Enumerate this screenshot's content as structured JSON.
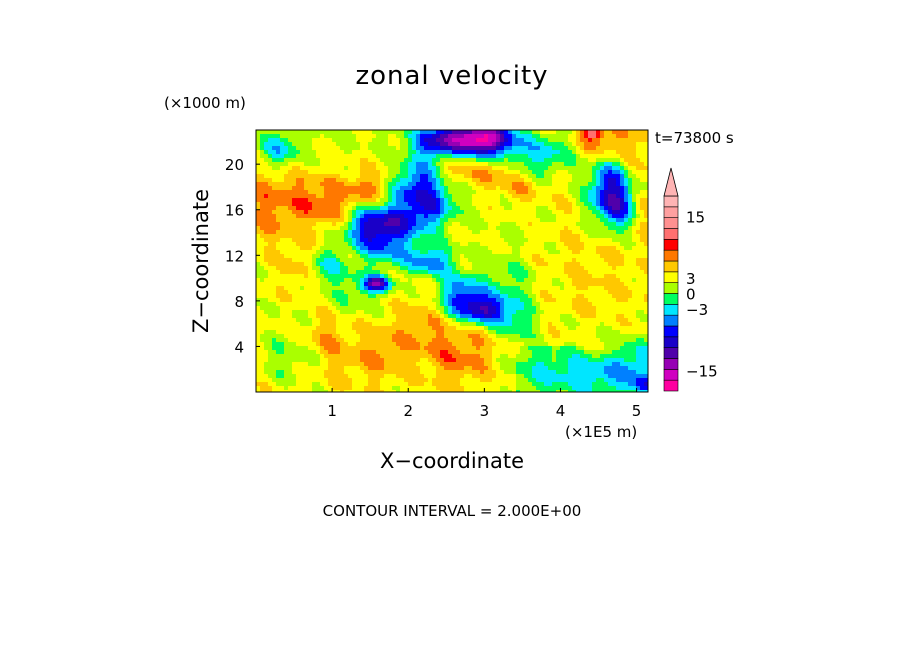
{
  "chart_data": {
    "type": "heatmap",
    "title": "zonal velocity",
    "xlabel": "X−coordinate",
    "ylabel": "Z−coordinate",
    "x_unit": "(×1E5 m)",
    "y_unit": "(×1000 m)",
    "xlim": [
      0,
      5.15
    ],
    "ylim": [
      0,
      23.0
    ],
    "x_ticks": [
      {
        "value": 1,
        "label": "1"
      },
      {
        "value": 2,
        "label": "2"
      },
      {
        "value": 3,
        "label": "3"
      },
      {
        "value": 4,
        "label": "4"
      },
      {
        "value": 5,
        "label": "5"
      }
    ],
    "y_ticks": [
      {
        "value": 4,
        "label": "4"
      },
      {
        "value": 8,
        "label": "8"
      },
      {
        "value": 12,
        "label": "12"
      },
      {
        "value": 16,
        "label": "16"
      },
      {
        "value": 20,
        "label": "20"
      }
    ],
    "time_label": "t=73800 s",
    "contour_interval_label": "CONTOUR INTERVAL = 2.000E+00",
    "colorbar": {
      "levels": [
        -19,
        -17,
        -15,
        -13,
        -11,
        -9,
        -7,
        -5,
        -3,
        -1,
        1,
        3,
        5,
        7,
        9,
        11,
        13,
        15,
        17,
        19
      ],
      "colors": [
        "#ff00a0",
        "#d000c0",
        "#9600b4",
        "#5000aa",
        "#1a00c8",
        "#0000ff",
        "#0080ff",
        "#00e6ff",
        "#00ff60",
        "#aaff00",
        "#ffff00",
        "#ffc800",
        "#ff7800",
        "#ff0000",
        "#ff7070",
        "#ff9090",
        "#ffa0a0",
        "#ffb4b4"
      ],
      "tick_labels": [
        {
          "value": 15,
          "label": "15"
        },
        {
          "value": 3,
          "label": "3"
        },
        {
          "value": 0,
          "label": "0"
        },
        {
          "value": -3,
          "label": "−3"
        },
        {
          "value": -15,
          "label": "−15"
        }
      ]
    },
    "features": [
      {
        "x": 0.9,
        "z": 20.0,
        "value": 1,
        "w": 0.5,
        "h": 2.5
      },
      {
        "x": 0.3,
        "z": 21.2,
        "value": -6,
        "w": 0.25,
        "h": 1.6
      },
      {
        "x": 0.15,
        "z": 16.5,
        "value": 6,
        "w": 0.35,
        "h": 4.0
      },
      {
        "x": 0.7,
        "z": 17.0,
        "value": 6,
        "w": 0.35,
        "h": 2.5
      },
      {
        "x": 1.35,
        "z": 20.0,
        "value": 1,
        "w": 0.5,
        "h": 2.2
      },
      {
        "x": 1.05,
        "z": 16.0,
        "value": 5,
        "w": 0.3,
        "h": 2.0
      },
      {
        "x": 1.5,
        "z": 17.8,
        "value": 7,
        "w": 0.35,
        "h": 1.6
      },
      {
        "x": 1.8,
        "z": 19.0,
        "value": 3,
        "w": 0.4,
        "h": 2.0
      },
      {
        "x": 2.3,
        "z": 20.5,
        "value": -3,
        "w": 0.3,
        "h": 1.8
      },
      {
        "x": 2.4,
        "z": 22.0,
        "value": -8,
        "w": 0.35,
        "h": 1.3
      },
      {
        "x": 2.9,
        "z": 22.4,
        "value": -13,
        "w": 0.45,
        "h": 1.2
      },
      {
        "x": 3.0,
        "z": 21.5,
        "value": -10,
        "w": 0.35,
        "h": 1.5
      },
      {
        "x": 2.6,
        "z": 19.5,
        "value": 7,
        "w": 0.35,
        "h": 1.8
      },
      {
        "x": 3.15,
        "z": 19.8,
        "value": 6,
        "w": 0.3,
        "h": 2.0
      },
      {
        "x": 2.1,
        "z": 18.0,
        "value": -10,
        "w": 0.45,
        "h": 2.0
      },
      {
        "x": 1.5,
        "z": 14.5,
        "value": -10,
        "w": 0.35,
        "h": 1.8
      },
      {
        "x": 2.0,
        "z": 15.0,
        "value": -7,
        "w": 0.4,
        "h": 1.5
      },
      {
        "x": 2.35,
        "z": 16.5,
        "value": -3,
        "w": 0.3,
        "h": 1.6
      },
      {
        "x": 1.75,
        "z": 12.5,
        "value": -5,
        "w": 0.35,
        "h": 1.5
      },
      {
        "x": 1.35,
        "z": 9.0,
        "value": -2,
        "w": 0.3,
        "h": 2.0
      },
      {
        "x": 1.6,
        "z": 9.5,
        "value": -12,
        "w": 0.18,
        "h": 0.7
      },
      {
        "x": 2.3,
        "z": 11.5,
        "value": -7,
        "w": 0.3,
        "h": 1.3
      },
      {
        "x": 2.7,
        "z": 8.5,
        "value": -8,
        "w": 0.3,
        "h": 1.8
      },
      {
        "x": 3.0,
        "z": 7.2,
        "value": -10,
        "w": 0.3,
        "h": 1.2
      },
      {
        "x": 0.3,
        "z": 12.0,
        "value": 1,
        "w": 0.3,
        "h": 2.0
      },
      {
        "x": 0.6,
        "z": 11.0,
        "value": 5,
        "w": 0.25,
        "h": 2.5
      },
      {
        "x": 0.9,
        "z": 11.0,
        "value": -4,
        "w": 0.25,
        "h": 1.8
      },
      {
        "x": 0.5,
        "z": 7.0,
        "value": 1,
        "w": 0.35,
        "h": 2.5
      },
      {
        "x": 0.9,
        "z": 5.0,
        "value": 5,
        "w": 0.3,
        "h": 1.6
      },
      {
        "x": 0.4,
        "z": 3.0,
        "value": -1,
        "w": 0.35,
        "h": 2.0
      },
      {
        "x": 1.2,
        "z": 2.5,
        "value": 4,
        "w": 0.35,
        "h": 2.0
      },
      {
        "x": 1.7,
        "z": 3.5,
        "value": 5,
        "w": 0.35,
        "h": 2.5
      },
      {
        "x": 2.2,
        "z": 5.5,
        "value": 5,
        "w": 0.3,
        "h": 2.5
      },
      {
        "x": 2.6,
        "z": 3.0,
        "value": 6,
        "w": 0.35,
        "h": 2.5
      },
      {
        "x": 3.0,
        "z": 4.0,
        "value": 4,
        "w": 0.35,
        "h": 2.5
      },
      {
        "x": 3.3,
        "z": 9.5,
        "value": -2,
        "w": 0.35,
        "h": 2.5
      },
      {
        "x": 3.4,
        "z": 6.0,
        "value": -3,
        "w": 0.3,
        "h": 1.8
      },
      {
        "x": 3.5,
        "z": 15.0,
        "value": 1,
        "w": 0.5,
        "h": 3.0
      },
      {
        "x": 3.75,
        "z": 20.5,
        "value": -2,
        "w": 0.35,
        "h": 2.0
      },
      {
        "x": 3.35,
        "z": 21.0,
        "value": -1,
        "w": 0.35,
        "h": 1.8
      },
      {
        "x": 3.5,
        "z": 18.0,
        "value": 5,
        "w": 0.25,
        "h": 1.5
      },
      {
        "x": 4.0,
        "z": 21.5,
        "value": -1,
        "w": 0.35,
        "h": 1.8
      },
      {
        "x": 4.5,
        "z": 22.0,
        "value": 7,
        "w": 0.4,
        "h": 1.5
      },
      {
        "x": 4.4,
        "z": 22.7,
        "value": 10,
        "w": 0.12,
        "h": 0.5
      },
      {
        "x": 4.65,
        "z": 18.0,
        "value": -9,
        "w": 0.3,
        "h": 2.5
      },
      {
        "x": 4.75,
        "z": 16.0,
        "value": -5,
        "w": 0.3,
        "h": 2.0
      },
      {
        "x": 5.0,
        "z": 20.0,
        "value": 4,
        "w": 0.25,
        "h": 2.5
      },
      {
        "x": 5.1,
        "z": 16.0,
        "value": 6,
        "w": 0.15,
        "h": 1.5
      },
      {
        "x": 4.2,
        "z": 12.0,
        "value": 3,
        "w": 0.55,
        "h": 4.5
      },
      {
        "x": 4.5,
        "z": 8.5,
        "value": 3,
        "w": 0.5,
        "h": 3.0
      },
      {
        "x": 3.8,
        "z": 9.0,
        "value": 2,
        "w": 0.4,
        "h": 3.0
      },
      {
        "x": 4.5,
        "z": 5.0,
        "value": 1,
        "w": 0.5,
        "h": 2.0
      },
      {
        "x": 3.9,
        "z": 2.0,
        "value": -3,
        "w": 0.55,
        "h": 1.5
      },
      {
        "x": 4.6,
        "z": 1.5,
        "value": -5,
        "w": 0.55,
        "h": 1.5
      },
      {
        "x": 5.0,
        "z": 3.0,
        "value": -4,
        "w": 0.25,
        "h": 1.8
      },
      {
        "x": 5.1,
        "z": 0.6,
        "value": -8,
        "w": 0.2,
        "h": 0.8
      }
    ]
  }
}
